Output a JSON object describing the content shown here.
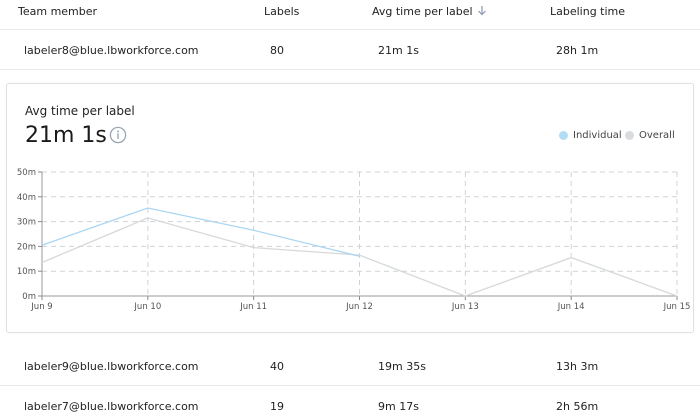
{
  "table": {
    "headers": {
      "member": "Team member",
      "labels": "Labels",
      "avg": "Avg time per label",
      "time": "Labeling time"
    },
    "rows": [
      {
        "member": "labeler8@blue.lbworkforce.com",
        "labels": "80",
        "avg": "21m 1s",
        "time": "28h 1m"
      },
      {
        "member": "labeler9@blue.lbworkforce.com",
        "labels": "40",
        "avg": "19m 35s",
        "time": "13h 3m"
      },
      {
        "member": "labeler7@blue.lbworkforce.com",
        "labels": "19",
        "avg": "9m 17s",
        "time": "2h 56m"
      }
    ]
  },
  "detail": {
    "title": "Avg time per label",
    "value": "21m 1s",
    "legend": {
      "individual": "Individual",
      "overall": "Overall",
      "individual_color": "#b3dcf5",
      "overall_color": "#d9dcdf"
    }
  },
  "chart_data": {
    "type": "line",
    "x": [
      "Jun 9",
      "Jun 10",
      "Jun 11",
      "Jun 12",
      "Jun 13",
      "Jun 14",
      "Jun 15"
    ],
    "yticks": [
      "0m",
      "10m",
      "20m",
      "30m",
      "40m",
      "50m"
    ],
    "ylim": [
      0,
      50
    ],
    "grid": true,
    "series": [
      {
        "name": "Individual",
        "color": "#aad6f2",
        "values": [
          20.5,
          35.5,
          26.5,
          16,
          null,
          null,
          null
        ]
      },
      {
        "name": "Overall",
        "color": "#d6d8da",
        "values": [
          13.5,
          31.5,
          19.5,
          16.5,
          0,
          15.5,
          0
        ]
      }
    ]
  }
}
